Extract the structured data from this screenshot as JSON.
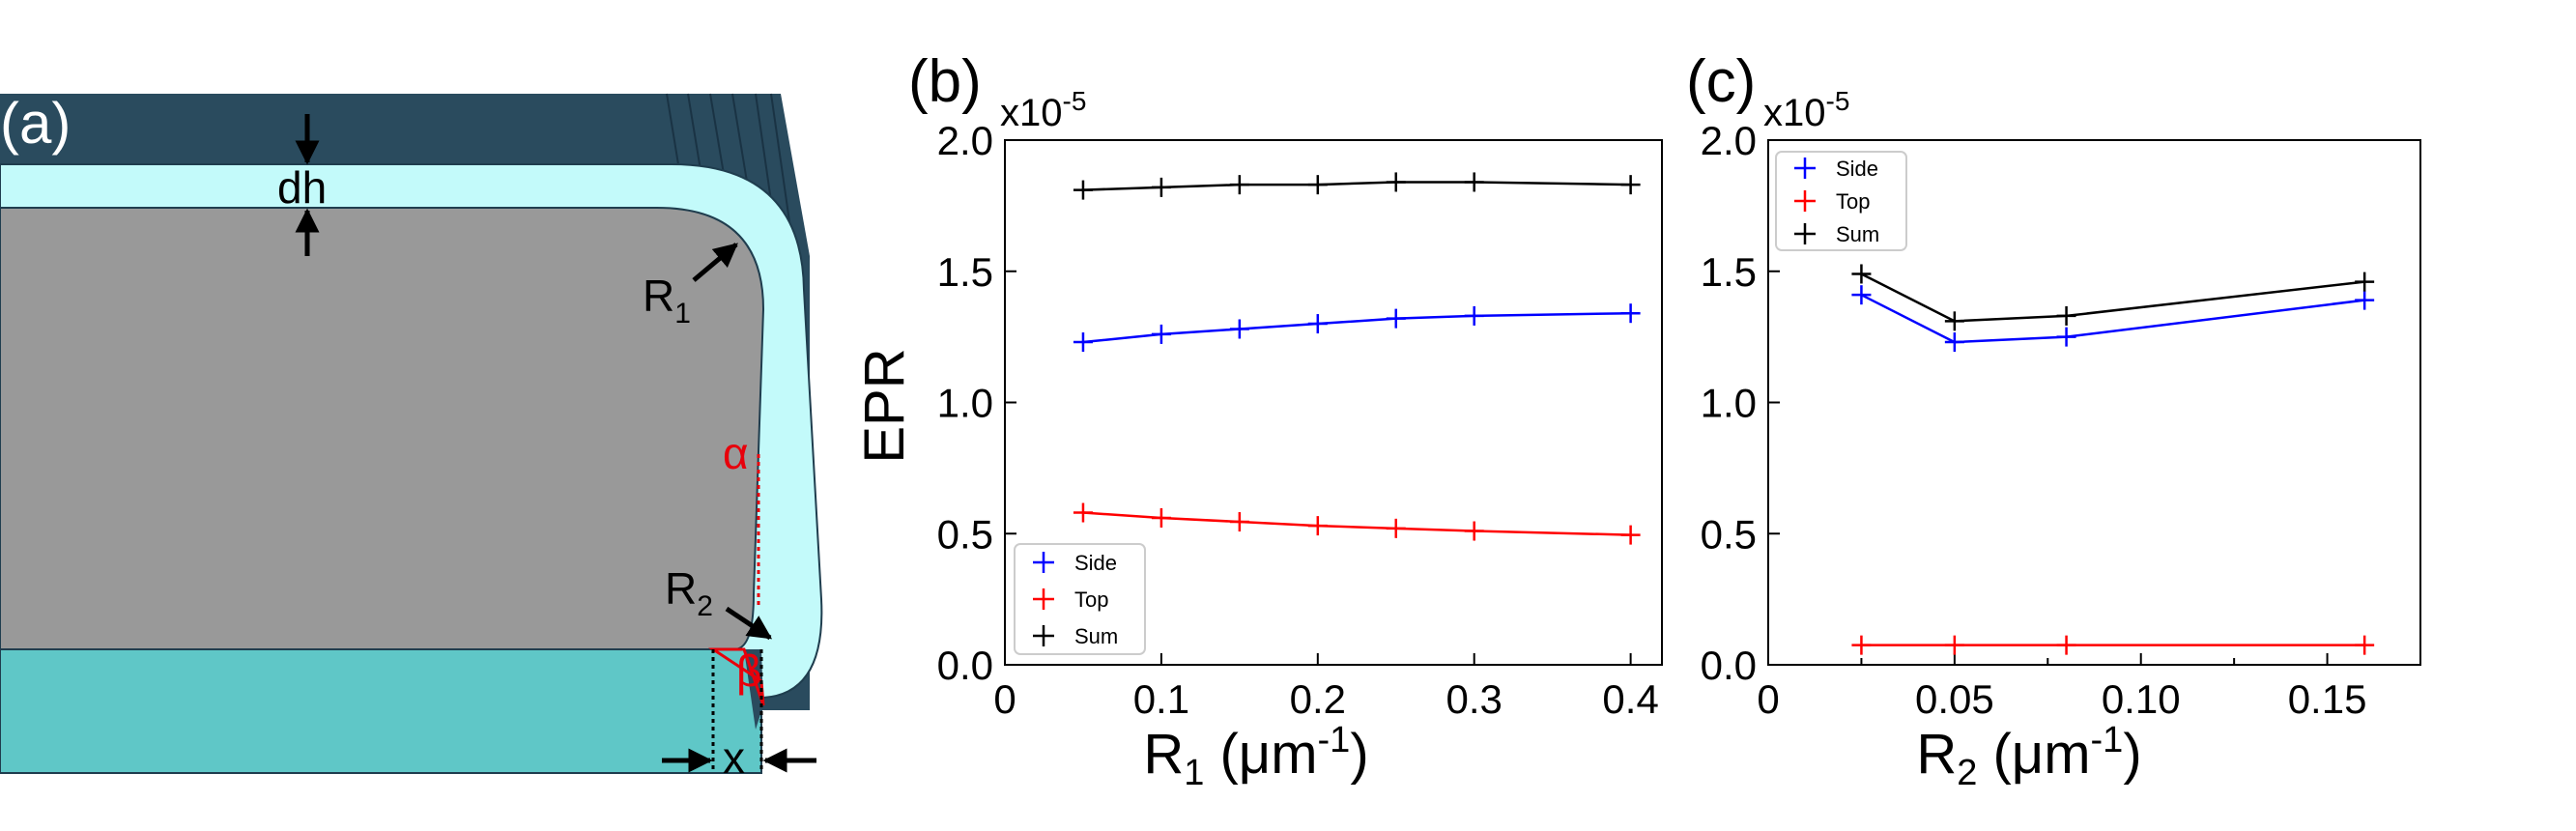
{
  "panel_a": {
    "label": "(a)",
    "dh": "dh",
    "r1": {
      "base": "R",
      "sub": "1"
    },
    "r2": {
      "base": "R",
      "sub": "2"
    },
    "alpha": "α",
    "beta": "β",
    "x": "x"
  },
  "colors": {
    "side": "#0000ff",
    "top": "#ff0000",
    "sum": "#000000",
    "angle": "#e8000b",
    "substrate_top": "#2a4b5e",
    "film": "#c3fafa",
    "core": "#999999",
    "base": "#5fc7c7"
  },
  "chart_data": [
    {
      "type": "line",
      "panel_label": "(b)",
      "title": "",
      "xlabel": {
        "base": "R",
        "sub": "1",
        "rest": " (μm",
        "sup": "-1",
        "close": ")"
      },
      "ylabel": "EPR",
      "y_multiplier": {
        "base": "x10",
        "sup": "-5"
      },
      "xlim": [
        0,
        0.42
      ],
      "ylim": [
        0,
        2.0
      ],
      "x_ticks": [
        0,
        0.1,
        0.2,
        0.3,
        0.4
      ],
      "x_tick_labels": [
        "0",
        "0.1",
        "0.2",
        "0.3",
        "0.4"
      ],
      "y_ticks": [
        0,
        0.5,
        1.0,
        1.5,
        2.0
      ],
      "y_tick_labels": [
        "0.0",
        "0.5",
        "1.0",
        "1.5",
        "2.0"
      ],
      "grid": false,
      "legend_position": "bottom-left",
      "x": [
        0.05,
        0.1,
        0.15,
        0.2,
        0.25,
        0.3,
        0.4
      ],
      "series": [
        {
          "name": "Side",
          "color": "#0000ff",
          "values": [
            1.23,
            1.26,
            1.28,
            1.3,
            1.32,
            1.33,
            1.34
          ]
        },
        {
          "name": "Top",
          "color": "#ff0000",
          "values": [
            0.58,
            0.56,
            0.545,
            0.53,
            0.52,
            0.51,
            0.495
          ]
        },
        {
          "name": "Sum",
          "color": "#000000",
          "values": [
            1.81,
            1.82,
            1.83,
            1.83,
            1.84,
            1.84,
            1.83
          ]
        }
      ]
    },
    {
      "type": "line",
      "panel_label": "(c)",
      "title": "",
      "xlabel": {
        "base": "R",
        "sub": "2",
        "rest": " (μm",
        "sup": "-1",
        "close": ")"
      },
      "ylabel": "",
      "y_multiplier": {
        "base": "x10",
        "sup": "-5"
      },
      "xlim": [
        0,
        0.175
      ],
      "ylim": [
        0,
        2.0
      ],
      "x_ticks": [
        0,
        0.05,
        0.1,
        0.15
      ],
      "x_tick_labels": [
        "0",
        "0.05",
        "0.10",
        "0.15"
      ],
      "x_minor_ticks": [
        0.025,
        0.075,
        0.125,
        0.175
      ],
      "y_ticks": [
        0,
        0.5,
        1.0,
        1.5,
        2.0
      ],
      "y_tick_labels": [
        "0.0",
        "0.5",
        "1.0",
        "1.5",
        "2.0"
      ],
      "grid": false,
      "legend_position": "top-left",
      "x": [
        0.025,
        0.05,
        0.08,
        0.16
      ],
      "series": [
        {
          "name": "Side",
          "color": "#0000ff",
          "values": [
            1.41,
            1.23,
            1.25,
            1.39
          ]
        },
        {
          "name": "Top",
          "color": "#ff0000",
          "values": [
            0.075,
            0.075,
            0.075,
            0.075
          ]
        },
        {
          "name": "Sum",
          "color": "#000000",
          "values": [
            1.49,
            1.31,
            1.33,
            1.46
          ]
        }
      ]
    }
  ]
}
